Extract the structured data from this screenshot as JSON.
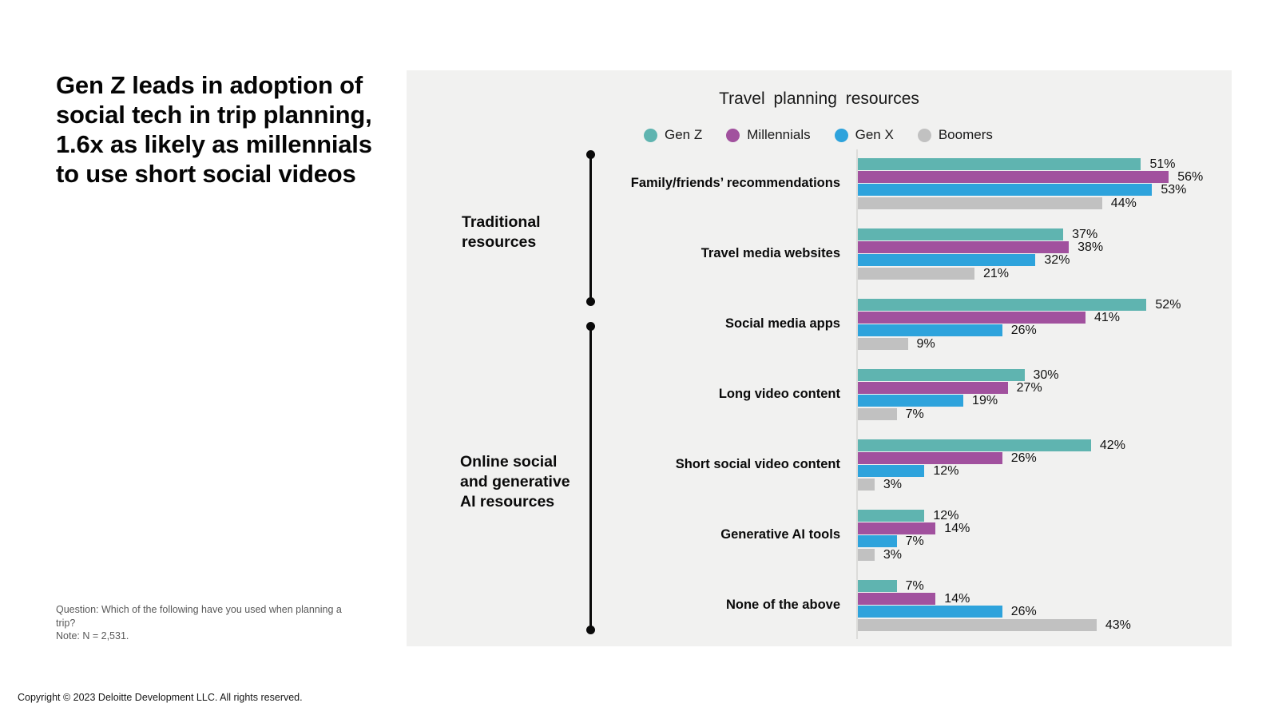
{
  "page": {
    "headline": "Gen Z leads in adoption of social tech in trip planning, 1.6x as likely as millennials to use short social videos",
    "footnote_question": "Question: Which of the following have you used when planning a trip?",
    "footnote_note": "Note: N = 2,531.",
    "copyright": "Copyright © 2023 Deloitte Development LLC. All rights reserved."
  },
  "chart_data": {
    "type": "bar",
    "orientation": "horizontal",
    "title": "Travel planning resources",
    "legend_position": "top",
    "grid": false,
    "xlim": [
      0,
      60
    ],
    "value_suffix": "%",
    "panel_background": "#F1F1F0",
    "categories": [
      "Family/friends’ recommendations",
      "Travel media websites",
      "Social media apps",
      "Long video content",
      "Short social video content",
      "Generative AI tools",
      "None of the above"
    ],
    "series": [
      {
        "name": "Gen Z",
        "color": "#5FB4B0",
        "values": [
          51,
          37,
          52,
          30,
          42,
          12,
          7
        ]
      },
      {
        "name": "Millennials",
        "color": "#A1519E",
        "values": [
          56,
          38,
          41,
          27,
          26,
          14,
          14
        ]
      },
      {
        "name": "Gen X",
        "color": "#2EA3DC",
        "values": [
          53,
          32,
          26,
          19,
          12,
          7,
          26
        ]
      },
      {
        "name": "Boomers",
        "color": "#C1C1C1",
        "values": [
          44,
          21,
          9,
          7,
          3,
          3,
          43
        ]
      }
    ],
    "category_groups": [
      {
        "label": "Traditional resources",
        "span": [
          0,
          1
        ]
      },
      {
        "label": "Online social and generative AI resources",
        "span": [
          2,
          6
        ]
      }
    ]
  }
}
